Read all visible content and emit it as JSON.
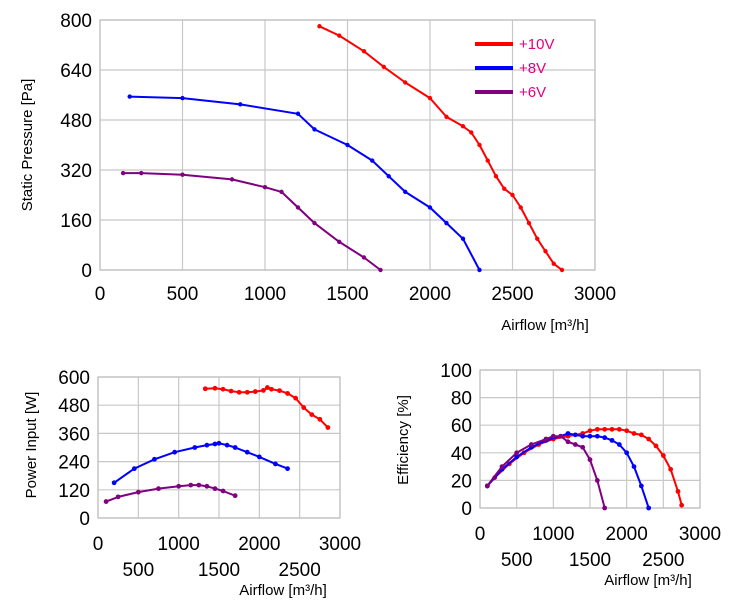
{
  "chart_data": [
    {
      "type": "line",
      "xlabel": "Airflow [m³/h]",
      "ylabel": "Static Pressure [Pa]",
      "xlim": [
        0,
        3000
      ],
      "ylim": [
        0,
        800
      ],
      "xticks": [
        "0",
        "500",
        "1000",
        "1500",
        "2000",
        "2500",
        "3000"
      ],
      "yticks": [
        "0",
        "160",
        "320",
        "480",
        "640",
        "800"
      ],
      "grid": true,
      "legend_position": "top-right",
      "series": [
        {
          "name": "+10V",
          "color": "#ff0000",
          "x": [
            1330,
            1450,
            1600,
            1720,
            1850,
            2000,
            2100,
            2200,
            2250,
            2300,
            2350,
            2400,
            2450,
            2500,
            2550,
            2600,
            2650,
            2700,
            2750,
            2800
          ],
          "y": [
            780,
            750,
            700,
            650,
            600,
            550,
            490,
            460,
            440,
            400,
            350,
            300,
            260,
            240,
            200,
            150,
            100,
            60,
            20,
            0
          ]
        },
        {
          "name": "+8V",
          "color": "#0000ff",
          "x": [
            180,
            500,
            850,
            1200,
            1300,
            1500,
            1650,
            1750,
            1850,
            2000,
            2100,
            2200,
            2300
          ],
          "y": [
            555,
            550,
            530,
            500,
            450,
            400,
            350,
            300,
            250,
            200,
            150,
            100,
            0
          ]
        },
        {
          "name": "+6V",
          "color": "#800080",
          "x": [
            140,
            250,
            500,
            800,
            1000,
            1100,
            1200,
            1300,
            1450,
            1600,
            1700
          ],
          "y": [
            310,
            310,
            305,
            290,
            265,
            250,
            200,
            150,
            90,
            40,
            0
          ]
        }
      ]
    },
    {
      "type": "line",
      "xlabel": "Airflow [m³/h]",
      "ylabel": "Power Input [W]",
      "xlim": [
        0,
        3000
      ],
      "ylim": [
        0,
        600
      ],
      "xticks": [
        "0",
        "500",
        "1000",
        "1500",
        "2000",
        "2500",
        "3000"
      ],
      "yticks": [
        "0",
        "120",
        "240",
        "360",
        "480",
        "600"
      ],
      "grid": true,
      "series": [
        {
          "color": "#ff0000",
          "x": [
            1330,
            1450,
            1550,
            1650,
            1750,
            1850,
            1950,
            2050,
            2100,
            2150,
            2250,
            2350,
            2450,
            2550,
            2650,
            2750,
            2850
          ],
          "y": [
            550,
            552,
            548,
            540,
            535,
            535,
            538,
            543,
            555,
            548,
            542,
            530,
            510,
            470,
            440,
            420,
            385
          ]
        },
        {
          "color": "#0000ff",
          "x": [
            200,
            450,
            700,
            950,
            1200,
            1350,
            1450,
            1500,
            1600,
            1700,
            1850,
            2000,
            2200,
            2350
          ],
          "y": [
            150,
            210,
            250,
            280,
            300,
            310,
            315,
            318,
            310,
            300,
            280,
            260,
            230,
            210
          ]
        },
        {
          "color": "#800080",
          "x": [
            100,
            250,
            500,
            750,
            1000,
            1150,
            1250,
            1350,
            1450,
            1550,
            1700
          ],
          "y": [
            70,
            90,
            110,
            125,
            135,
            140,
            140,
            135,
            125,
            115,
            95
          ]
        }
      ]
    },
    {
      "type": "line",
      "xlabel": "Airflow [m³/h]",
      "ylabel": "Efficiency [%]",
      "xlim": [
        0,
        3000
      ],
      "ylim": [
        0,
        100
      ],
      "xticks": [
        "0",
        "500",
        "1000",
        "1500",
        "2000",
        "2500",
        "3000"
      ],
      "yticks": [
        "0",
        "20",
        "40",
        "60",
        "80",
        "100"
      ],
      "grid": true,
      "series": [
        {
          "color": "#ff0000",
          "x": [
            100,
            200,
            400,
            600,
            800,
            1000,
            1200,
            1400,
            1500,
            1600,
            1700,
            1800,
            1900,
            2000,
            2100,
            2200,
            2300,
            2400,
            2500,
            2600,
            2700,
            2750
          ],
          "y": [
            16,
            22,
            32,
            40,
            46,
            50,
            52,
            54,
            56,
            57,
            57,
            57,
            57,
            56,
            54,
            53,
            50,
            45,
            38,
            28,
            12,
            2
          ]
        },
        {
          "color": "#0000ff",
          "x": [
            100,
            300,
            500,
            700,
            900,
            1100,
            1200,
            1300,
            1400,
            1500,
            1600,
            1700,
            1800,
            1900,
            2000,
            2100,
            2200,
            2300
          ],
          "y": [
            16,
            28,
            37,
            44,
            49,
            52,
            54,
            53,
            52,
            52,
            52,
            51,
            49,
            46,
            40,
            30,
            16,
            0
          ]
        },
        {
          "color": "#800080",
          "x": [
            100,
            300,
            500,
            700,
            900,
            1000,
            1100,
            1200,
            1300,
            1400,
            1500,
            1600,
            1700
          ],
          "y": [
            16,
            30,
            40,
            46,
            50,
            52,
            52,
            48,
            46,
            44,
            35,
            20,
            0
          ]
        }
      ]
    }
  ]
}
